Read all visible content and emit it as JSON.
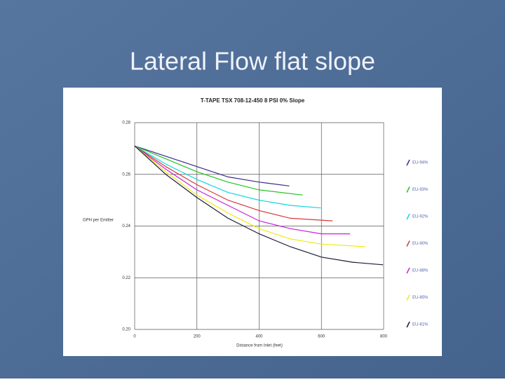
{
  "slide_title": "Lateral Flow flat slope",
  "chart_data": {
    "type": "line",
    "title": "T-TAPE TSX 708-12-450 8 PSI 0% Slope",
    "x_label": "Distance from Inlet (feet)",
    "y_label": "GPH per Emitter",
    "xlim": [
      0,
      800
    ],
    "xticks": [
      0,
      200,
      400,
      600,
      800
    ],
    "ylim": [
      0.2,
      0.28
    ],
    "yticks": [
      {
        "value": 0.2,
        "label": "0.20"
      },
      {
        "value": 0.22,
        "label": "0.22"
      },
      {
        "value": 0.24,
        "label": "0.24"
      },
      {
        "value": 0.26,
        "label": "0.26"
      },
      {
        "value": 0.28,
        "label": "0.28"
      }
    ],
    "grid": true,
    "legend": "right",
    "series": [
      {
        "name": "EU-94%",
        "color": "#3a2a8c",
        "x": [
          0,
          100,
          200,
          300,
          400,
          497
        ],
        "values": [
          0.271,
          0.267,
          0.263,
          0.259,
          0.257,
          0.2555
        ]
      },
      {
        "name": "EU-93%",
        "color": "#22c522",
        "x": [
          0,
          100,
          200,
          300,
          400,
          540
        ],
        "values": [
          0.271,
          0.266,
          0.261,
          0.257,
          0.254,
          0.252
        ]
      },
      {
        "name": "EU-92%",
        "color": "#11d6e0",
        "x": [
          0,
          100,
          200,
          300,
          400,
          500,
          598
        ],
        "values": [
          0.271,
          0.264,
          0.258,
          0.253,
          0.25,
          0.248,
          0.247
        ]
      },
      {
        "name": "EU-90%",
        "color": "#d43a3a",
        "x": [
          0,
          100,
          200,
          300,
          400,
          500,
          636
        ],
        "values": [
          0.271,
          0.263,
          0.256,
          0.25,
          0.246,
          0.243,
          0.242
        ]
      },
      {
        "name": "EU-88%",
        "color": "#c425d6",
        "x": [
          0,
          100,
          200,
          300,
          400,
          500,
          600,
          692
        ],
        "values": [
          0.271,
          0.262,
          0.254,
          0.248,
          0.242,
          0.239,
          0.237,
          0.237
        ]
      },
      {
        "name": "EU-85%",
        "color": "#f0ea10",
        "x": [
          0,
          100,
          200,
          300,
          400,
          500,
          600,
          742
        ],
        "values": [
          0.271,
          0.261,
          0.252,
          0.245,
          0.239,
          0.235,
          0.233,
          0.232
        ]
      },
      {
        "name": "EU-81%",
        "color": "#1a1a3a",
        "x": [
          0,
          100,
          200,
          300,
          400,
          500,
          600,
          700,
          798
        ],
        "values": [
          0.271,
          0.26,
          0.251,
          0.243,
          0.237,
          0.232,
          0.228,
          0.226,
          0.225
        ]
      }
    ]
  }
}
